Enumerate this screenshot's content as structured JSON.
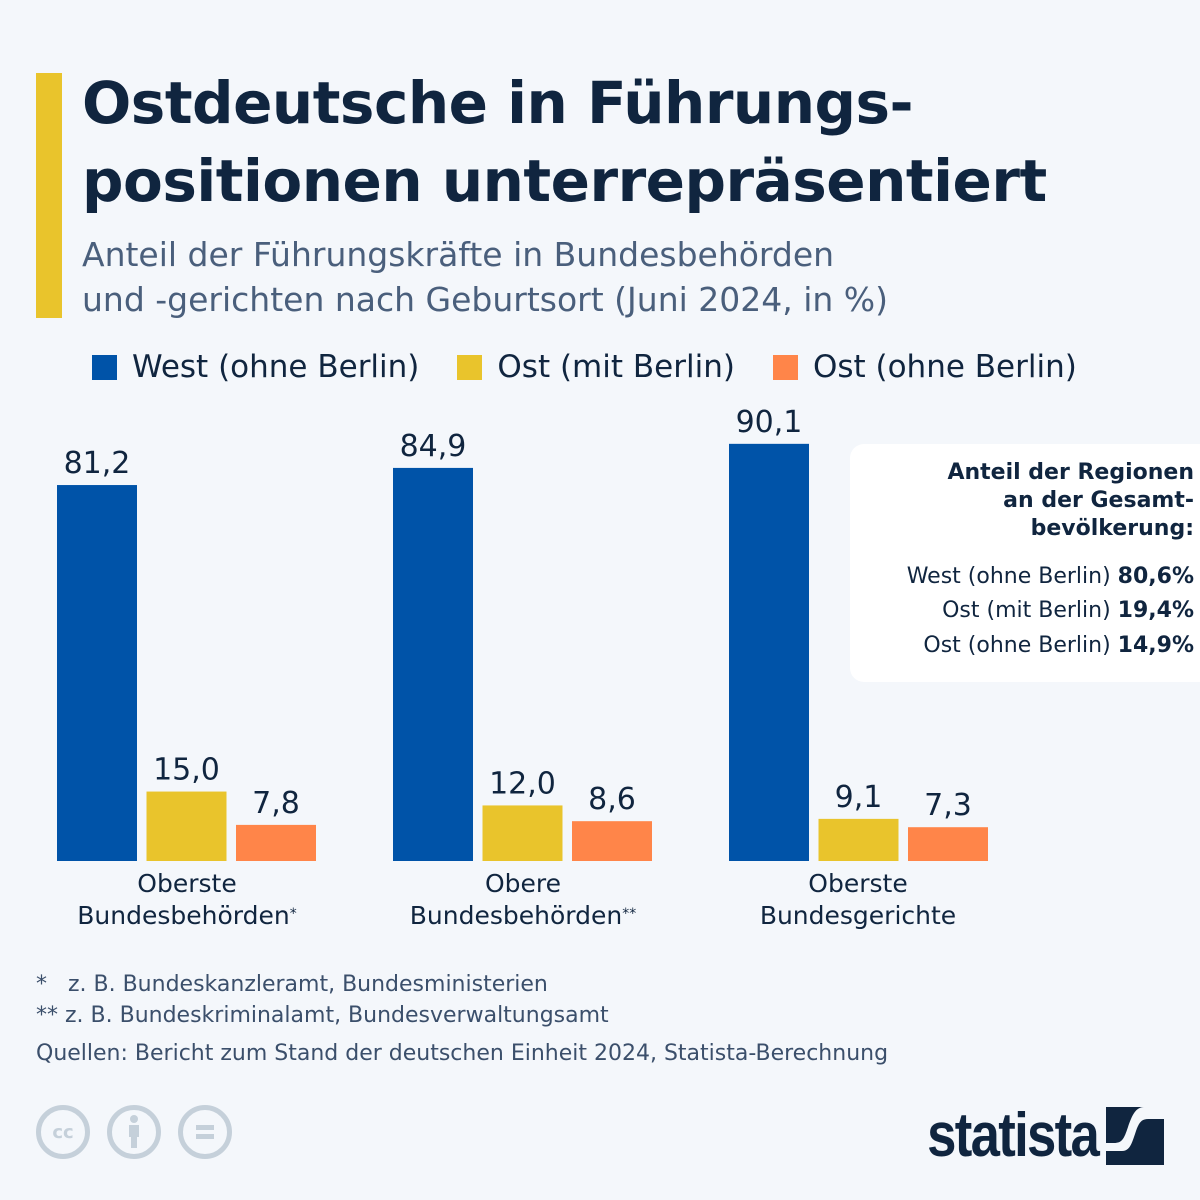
{
  "header": {
    "title_line1": "Ostdeutsche in Führungs-",
    "title_line2": "positionen unterrepräsentiert",
    "subtitle_line1": "Anteil der Führungskräfte in Bundesbehörden",
    "subtitle_line2": "und -gerichten nach Geburtsort (Juni 2024, in %)"
  },
  "colors": {
    "accent": "#e9c42c",
    "west": "#0053a8",
    "ost_mit_berlin": "#e9c42c",
    "ost_ohne_berlin": "#ff8549",
    "text": "#10253f"
  },
  "chart_data": {
    "type": "bar",
    "title": "Ostdeutsche in Führungspositionen unterrepräsentiert",
    "subtitle": "Anteil der Führungskräfte in Bundesbehörden und -gerichten nach Geburtsort (Juni 2024, in %)",
    "xlabel": "",
    "ylabel": "",
    "ylim": [
      0,
      100
    ],
    "grid": false,
    "legend_position": "top",
    "categories": [
      "Oberste Bundesbehörden*",
      "Obere Bundesbehörden**",
      "Oberste Bundesgerichte"
    ],
    "category_lines": [
      [
        "Oberste",
        "Bundesbehörden",
        "*"
      ],
      [
        "Obere",
        "Bundesbehörden",
        "**"
      ],
      [
        "Oberste",
        "Bundesgerichte",
        ""
      ]
    ],
    "series": [
      {
        "name": "West (ohne Berlin)",
        "values": [
          81.2,
          84.9,
          90.1
        ],
        "labels": [
          "81,2",
          "84,9",
          "90,1"
        ]
      },
      {
        "name": "Ost (mit Berlin)",
        "values": [
          15.0,
          12.0,
          9.1
        ],
        "labels": [
          "15,0",
          "12,0",
          "9,1"
        ]
      },
      {
        "name": "Ost (ohne Berlin)",
        "values": [
          7.8,
          8.6,
          7.3
        ],
        "labels": [
          "7,8",
          "8,6",
          "7,3"
        ]
      }
    ]
  },
  "info_box": {
    "title_line1": "Anteil der Regionen",
    "title_line2": "an der Gesamt-",
    "title_line3": "bevölkerung:",
    "rows": [
      {
        "label": "West (ohne Berlin)",
        "value": "80,6%"
      },
      {
        "label": "Ost (mit Berlin)",
        "value": "19,4%"
      },
      {
        "label": "Ost (ohne Berlin)",
        "value": "14,9%"
      }
    ]
  },
  "footnotes": {
    "note1": "*   z. B. Bundeskanzleramt, Bundesministerien",
    "note2": "** z. B. Bundeskriminalamt, Bundesverwaltungsamt",
    "source": "Quellen: Bericht zum Stand der deutschen Einheit 2024, Statista-Berechnung"
  },
  "footer": {
    "license_icons": [
      "cc-icon",
      "attribution-icon",
      "no-derivatives-icon"
    ],
    "cc_text": "cc",
    "logo_text": "statista"
  }
}
